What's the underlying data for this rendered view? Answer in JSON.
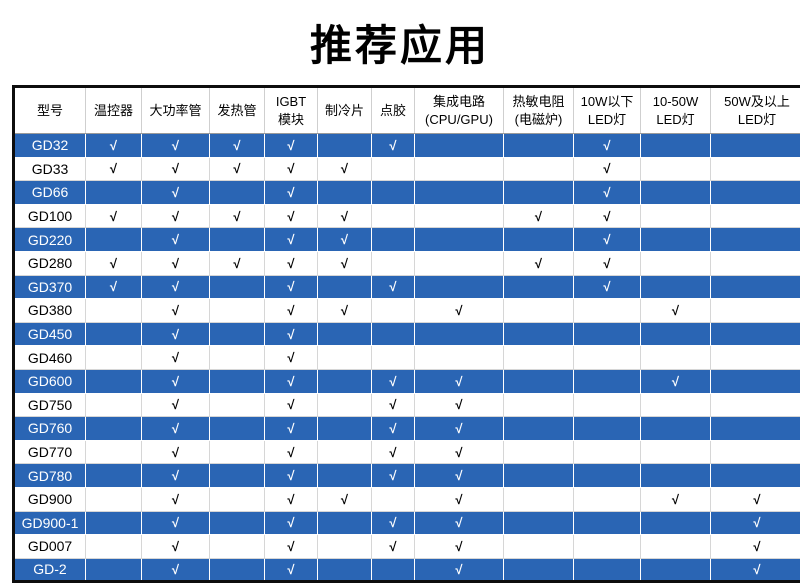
{
  "title": "推荐应用",
  "check_glyph": "√",
  "colors": {
    "row_blue": "#2a65b4",
    "row_white": "#ffffff",
    "text_on_blue": "#ffffff",
    "text_on_white": "#000000",
    "outer_border": "#0d0d0d"
  },
  "table": {
    "columns": [
      {
        "label": "型号",
        "lines": [
          "型号"
        ]
      },
      {
        "label": "温控器",
        "lines": [
          "温控器"
        ]
      },
      {
        "label": "大功率管",
        "lines": [
          "大功率管"
        ]
      },
      {
        "label": "发热管",
        "lines": [
          "发热管"
        ]
      },
      {
        "label": "IGBT模块",
        "lines": [
          "IGBT",
          "模块"
        ]
      },
      {
        "label": "制冷片",
        "lines": [
          "制冷片"
        ]
      },
      {
        "label": "点胶",
        "lines": [
          "点胶"
        ]
      },
      {
        "label": "集成电路(CPU/GPU)",
        "lines": [
          "集成电路",
          "(CPU/GPU)"
        ]
      },
      {
        "label": "热敏电阻(电磁炉)",
        "lines": [
          "热敏电阻",
          "(电磁炉)"
        ]
      },
      {
        "label": "10W以下LED灯",
        "lines": [
          "10W以下",
          "LED灯"
        ]
      },
      {
        "label": "10-50W LED灯",
        "lines": [
          "10-50W",
          "LED灯"
        ]
      },
      {
        "label": "50W及以上LED灯",
        "lines": [
          "50W及以上",
          "LED灯"
        ]
      }
    ],
    "rows": [
      {
        "model": "GD32",
        "checks": [
          1,
          1,
          1,
          1,
          0,
          1,
          0,
          0,
          1,
          0,
          0
        ]
      },
      {
        "model": "GD33",
        "checks": [
          1,
          1,
          1,
          1,
          1,
          0,
          0,
          0,
          1,
          0,
          0
        ]
      },
      {
        "model": "GD66",
        "checks": [
          0,
          1,
          0,
          1,
          0,
          0,
          0,
          0,
          1,
          0,
          0
        ]
      },
      {
        "model": "GD100",
        "checks": [
          1,
          1,
          1,
          1,
          1,
          0,
          0,
          1,
          1,
          0,
          0
        ]
      },
      {
        "model": "GD220",
        "checks": [
          0,
          1,
          0,
          1,
          1,
          0,
          0,
          0,
          1,
          0,
          0
        ]
      },
      {
        "model": "GD280",
        "checks": [
          1,
          1,
          1,
          1,
          1,
          0,
          0,
          1,
          1,
          0,
          0
        ]
      },
      {
        "model": "GD370",
        "checks": [
          1,
          1,
          0,
          1,
          0,
          1,
          0,
          0,
          1,
          0,
          0
        ]
      },
      {
        "model": "GD380",
        "checks": [
          0,
          1,
          0,
          1,
          1,
          0,
          1,
          0,
          0,
          1,
          0
        ]
      },
      {
        "model": "GD450",
        "checks": [
          0,
          1,
          0,
          1,
          0,
          0,
          0,
          0,
          0,
          0,
          0
        ]
      },
      {
        "model": "GD460",
        "checks": [
          0,
          1,
          0,
          1,
          0,
          0,
          0,
          0,
          0,
          0,
          0
        ]
      },
      {
        "model": "GD600",
        "checks": [
          0,
          1,
          0,
          1,
          0,
          1,
          1,
          0,
          0,
          1,
          0
        ]
      },
      {
        "model": "GD750",
        "checks": [
          0,
          1,
          0,
          1,
          0,
          1,
          1,
          0,
          0,
          0,
          0
        ]
      },
      {
        "model": "GD760",
        "checks": [
          0,
          1,
          0,
          1,
          0,
          1,
          1,
          0,
          0,
          0,
          0
        ]
      },
      {
        "model": "GD770",
        "checks": [
          0,
          1,
          0,
          1,
          0,
          1,
          1,
          0,
          0,
          0,
          0
        ]
      },
      {
        "model": "GD780",
        "checks": [
          0,
          1,
          0,
          1,
          0,
          1,
          1,
          0,
          0,
          0,
          0
        ]
      },
      {
        "model": "GD900",
        "checks": [
          0,
          1,
          0,
          1,
          1,
          0,
          1,
          0,
          0,
          1,
          1
        ]
      },
      {
        "model": "GD900-1",
        "checks": [
          0,
          1,
          0,
          1,
          0,
          1,
          1,
          0,
          0,
          0,
          1
        ]
      },
      {
        "model": "GD007",
        "checks": [
          0,
          1,
          0,
          1,
          0,
          1,
          1,
          0,
          0,
          0,
          1
        ]
      },
      {
        "model": "GD-2",
        "checks": [
          0,
          1,
          0,
          1,
          0,
          0,
          1,
          0,
          0,
          0,
          1
        ]
      }
    ]
  }
}
